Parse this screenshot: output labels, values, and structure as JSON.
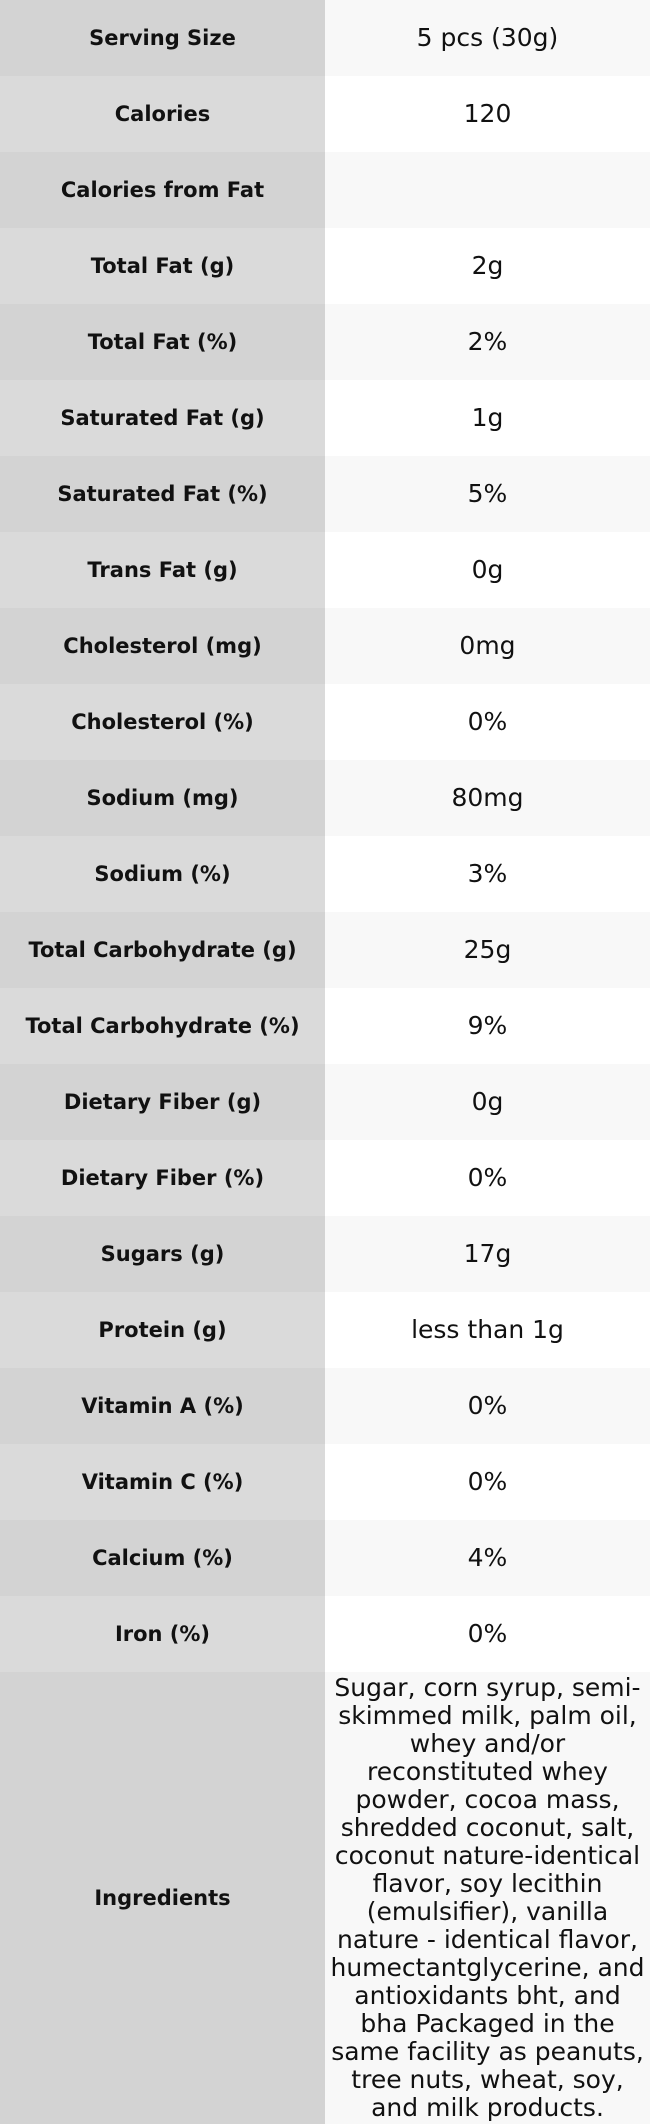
{
  "table": {
    "rows": [
      {
        "label": "Serving Size",
        "value": "5 pcs (30g)"
      },
      {
        "label": "Calories",
        "value": "120"
      },
      {
        "label": "Calories from Fat"
      },
      {
        "label": "Total Fat (g)",
        "value": "2g"
      },
      {
        "label": "Total Fat (%)",
        "value": "2%"
      },
      {
        "label": "Saturated Fat (g)",
        "value": "1g"
      },
      {
        "label": "Saturated Fat (%)",
        "value": "5%"
      },
      {
        "label": "Trans Fat (g)",
        "value": "0g"
      },
      {
        "label": "Cholesterol (mg)",
        "value": "0mg"
      },
      {
        "label": "Cholesterol (%)",
        "value": "0%"
      },
      {
        "label": "Sodium (mg)",
        "value": "80mg"
      },
      {
        "label": "Sodium (%)",
        "value": "3%"
      },
      {
        "label": "Total Carbohydrate (g)",
        "value": "25g"
      },
      {
        "label": "Total Carbohydrate (%)",
        "value": "9%"
      },
      {
        "label": "Dietary Fiber (g)",
        "value": "0g"
      },
      {
        "label": "Dietary Fiber (%)",
        "value": "0%"
      },
      {
        "label": "Sugars (g)",
        "value": "17g"
      },
      {
        "label": "Protein (g)",
        "value": "less than 1g"
      },
      {
        "label": "Vitamin A (%)",
        "value": "0%"
      },
      {
        "label": "Vitamin C (%)",
        "value": "0%"
      },
      {
        "label": "Calcium (%)",
        "value": "4%"
      },
      {
        "label": "Iron (%)",
        "value": "0%"
      },
      {
        "label": "Ingredients",
        "value": "Sugar, corn syrup, semi-skimmed milk, palm oil, whey and/or reconstituted whey powder, cocoa mass, shredded coconut, salt, coconut nature-identical flavor, soy lecithin (emulsifier), vanilla nature - identical flavor, humectantglycerine, and antioxidants bht, and bha Packaged in the same facility as peanuts, tree nuts, wheat, soy, and milk products."
      }
    ]
  }
}
